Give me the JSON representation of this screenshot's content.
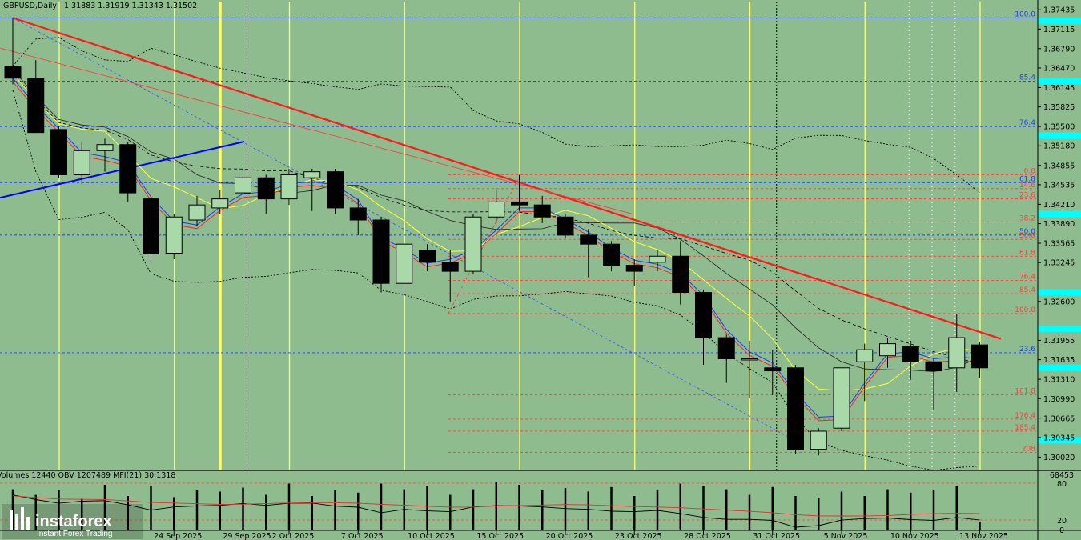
{
  "header": {
    "symbol": "GBPUSD,Daily",
    "ohlc": "1.31883 1.31919 1.31343 1.31502"
  },
  "indicators": {
    "text": "Volumes 12440  OBV 1207489  MFI(21) 30.1318",
    "scale": [
      "68453",
      "80",
      "20",
      "0"
    ]
  },
  "logo": {
    "name": "instaforex",
    "tagline": "Instant Forex Trading"
  },
  "colors": {
    "background": "#8fbc8f",
    "bull_candle": "#a9d9a9",
    "bear_candle": "#000000",
    "trend_red": "#ff1a1a",
    "trend_blue": "#0000ff",
    "fib_blue": "#1a3cff",
    "fib_red": "#ff3c3c",
    "price_tag": "#00ffff",
    "vline_yellow": "#ffff66"
  },
  "chart_data": {
    "type": "candlestick",
    "ylim": [
      1.298,
      1.3757
    ],
    "price_ticks": [
      "1.37435",
      "1.37115",
      "1.36790",
      "1.36470",
      "1.36145",
      "1.35825",
      "1.35500",
      "1.35180",
      "1.34855",
      "1.34535",
      "1.34210",
      "1.33890",
      "1.33565",
      "1.33245",
      "1.32600",
      "1.31955",
      "1.31635",
      "1.31310",
      "1.30990",
      "1.30665",
      "1.30345",
      "1.30020"
    ],
    "date_labels": [
      {
        "i": 7,
        "label": "24 Sep 2025"
      },
      {
        "i": 10,
        "label": "29 Sep 2025"
      },
      {
        "i": 12,
        "label": "2 Oct 2025"
      },
      {
        "i": 15,
        "label": "7 Oct 2025"
      },
      {
        "i": 18,
        "label": "10 Oct 2025"
      },
      {
        "i": 21,
        "label": "15 Oct 2025"
      },
      {
        "i": 24,
        "label": "20 Oct 2025"
      },
      {
        "i": 27,
        "label": "23 Oct 2025"
      },
      {
        "i": 30,
        "label": "28 Oct 2025"
      },
      {
        "i": 33,
        "label": "31 Oct 2025"
      },
      {
        "i": 36,
        "label": "5 Nov 2025"
      },
      {
        "i": 39,
        "label": "10 Nov 2025"
      },
      {
        "i": 42,
        "label": "13 Nov 2025"
      }
    ],
    "candles": [
      {
        "o": 1.365,
        "h": 1.373,
        "l": 1.362,
        "c": 1.363
      },
      {
        "o": 1.363,
        "h": 1.366,
        "l": 1.354,
        "c": 1.354
      },
      {
        "o": 1.3545,
        "h": 1.355,
        "l": 1.3465,
        "c": 1.347
      },
      {
        "o": 1.347,
        "h": 1.3525,
        "l": 1.3455,
        "c": 1.351
      },
      {
        "o": 1.351,
        "h": 1.353,
        "l": 1.3475,
        "c": 1.352
      },
      {
        "o": 1.352,
        "h": 1.3525,
        "l": 1.3425,
        "c": 1.344
      },
      {
        "o": 1.343,
        "h": 1.344,
        "l": 1.3325,
        "c": 1.334
      },
      {
        "o": 1.334,
        "h": 1.3405,
        "l": 1.333,
        "c": 1.34
      },
      {
        "o": 1.3395,
        "h": 1.3435,
        "l": 1.3385,
        "c": 1.342
      },
      {
        "o": 1.3415,
        "h": 1.3445,
        "l": 1.3405,
        "c": 1.343
      },
      {
        "o": 1.344,
        "h": 1.3485,
        "l": 1.341,
        "c": 1.3465
      },
      {
        "o": 1.3465,
        "h": 1.347,
        "l": 1.3405,
        "c": 1.343
      },
      {
        "o": 1.343,
        "h": 1.348,
        "l": 1.342,
        "c": 1.347
      },
      {
        "o": 1.3465,
        "h": 1.348,
        "l": 1.341,
        "c": 1.3475
      },
      {
        "o": 1.3475,
        "h": 1.348,
        "l": 1.3405,
        "c": 1.3415
      },
      {
        "o": 1.3415,
        "h": 1.343,
        "l": 1.337,
        "c": 1.3395
      },
      {
        "o": 1.3395,
        "h": 1.34,
        "l": 1.3275,
        "c": 1.329
      },
      {
        "o": 1.329,
        "h": 1.3355,
        "l": 1.327,
        "c": 1.3355
      },
      {
        "o": 1.3345,
        "h": 1.3355,
        "l": 1.331,
        "c": 1.3325
      },
      {
        "o": 1.3325,
        "h": 1.3345,
        "l": 1.326,
        "c": 1.331
      },
      {
        "o": 1.331,
        "h": 1.3405,
        "l": 1.3305,
        "c": 1.34
      },
      {
        "o": 1.34,
        "h": 1.3445,
        "l": 1.339,
        "c": 1.3425
      },
      {
        "o": 1.3425,
        "h": 1.347,
        "l": 1.341,
        "c": 1.342
      },
      {
        "o": 1.342,
        "h": 1.3435,
        "l": 1.339,
        "c": 1.34
      },
      {
        "o": 1.34,
        "h": 1.3405,
        "l": 1.3365,
        "c": 1.337
      },
      {
        "o": 1.337,
        "h": 1.338,
        "l": 1.33,
        "c": 1.3355
      },
      {
        "o": 1.3355,
        "h": 1.336,
        "l": 1.331,
        "c": 1.332
      },
      {
        "o": 1.332,
        "h": 1.333,
        "l": 1.3285,
        "c": 1.331
      },
      {
        "o": 1.3325,
        "h": 1.3345,
        "l": 1.331,
        "c": 1.3335
      },
      {
        "o": 1.3335,
        "h": 1.336,
        "l": 1.3255,
        "c": 1.3275
      },
      {
        "o": 1.3275,
        "h": 1.328,
        "l": 1.3155,
        "c": 1.32
      },
      {
        "o": 1.32,
        "h": 1.3205,
        "l": 1.3125,
        "c": 1.3165
      },
      {
        "o": 1.3165,
        "h": 1.3195,
        "l": 1.31,
        "c": 1.3165
      },
      {
        "o": 1.315,
        "h": 1.318,
        "l": 1.3105,
        "c": 1.3145
      },
      {
        "o": 1.315,
        "h": 1.3155,
        "l": 1.3008,
        "c": 1.3015
      },
      {
        "o": 1.3015,
        "h": 1.305,
        "l": 1.3005,
        "c": 1.3045
      },
      {
        "o": 1.305,
        "h": 1.315,
        "l": 1.3045,
        "c": 1.315
      },
      {
        "o": 1.316,
        "h": 1.319,
        "l": 1.3095,
        "c": 1.318
      },
      {
        "o": 1.317,
        "h": 1.32,
        "l": 1.315,
        "c": 1.319
      },
      {
        "o": 1.3185,
        "h": 1.3195,
        "l": 1.313,
        "c": 1.316
      },
      {
        "o": 1.316,
        "h": 1.3165,
        "l": 1.308,
        "c": 1.3145
      },
      {
        "o": 1.315,
        "h": 1.324,
        "l": 1.311,
        "c": 1.32
      },
      {
        "o": 1.3188,
        "h": 1.3192,
        "l": 1.3134,
        "c": 1.315
      }
    ],
    "fib_levels": [
      {
        "label": "100.0",
        "price": 1.373,
        "color": "blue"
      },
      {
        "label": "85.4",
        "price": 1.3625,
        "color": "blue"
      },
      {
        "label": "76.4",
        "price": 1.355,
        "color": "blue"
      },
      {
        "label": "0.0",
        "price": 1.347,
        "color": "red"
      },
      {
        "label": "61.8",
        "price": 1.3457,
        "color": "blue"
      },
      {
        "label": "14.6",
        "price": 1.3447,
        "color": "red"
      },
      {
        "label": "23.6",
        "price": 1.343,
        "color": "red"
      },
      {
        "label": "38.2",
        "price": 1.3392,
        "color": "red"
      },
      {
        "label": "50.0",
        "price": 1.337,
        "color": "blue"
      },
      {
        "label": "50.0",
        "price": 1.3363,
        "color": "red"
      },
      {
        "label": "61.8",
        "price": 1.3335,
        "color": "red"
      },
      {
        "label": "76.4",
        "price": 1.3295,
        "color": "red"
      },
      {
        "label": "85.4",
        "price": 1.3273,
        "color": "red"
      },
      {
        "label": "100.0",
        "price": 1.324,
        "color": "red"
      },
      {
        "label": "23.6",
        "price": 1.3175,
        "color": "blue"
      },
      {
        "label": "161.8",
        "price": 1.3105,
        "color": "red"
      },
      {
        "label": "176.4",
        "price": 1.3065,
        "color": "red"
      },
      {
        "label": "185.4",
        "price": 1.3045,
        "color": "red"
      },
      {
        "label": "208",
        "price": 1.301,
        "color": "red"
      }
    ],
    "price_tags": [
      1.3725,
      1.3625,
      1.3535,
      1.3405,
      1.3275,
      1.3215,
      1.315,
      1.303
    ],
    "yellow_vlines": [
      2,
      7,
      9,
      12,
      17,
      22,
      27,
      32,
      37,
      42
    ],
    "dotted_vlines": [
      10,
      33
    ],
    "white_vlines": [
      39,
      40,
      41
    ],
    "volume_heights": [
      0.72,
      0.62,
      0.7,
      0.55,
      0.8,
      0.6,
      0.78,
      0.58,
      0.7,
      0.68,
      0.75,
      0.62,
      0.82,
      0.6,
      0.7,
      0.66,
      0.82,
      0.72,
      0.78,
      0.62,
      0.72,
      0.85,
      0.8,
      0.7,
      0.74,
      0.68,
      0.76,
      0.6,
      0.7,
      0.82,
      0.78,
      0.72,
      0.62,
      0.76,
      0.6,
      0.56,
      0.68,
      0.6,
      0.72,
      0.66,
      0.7,
      0.78,
      0.14
    ]
  }
}
